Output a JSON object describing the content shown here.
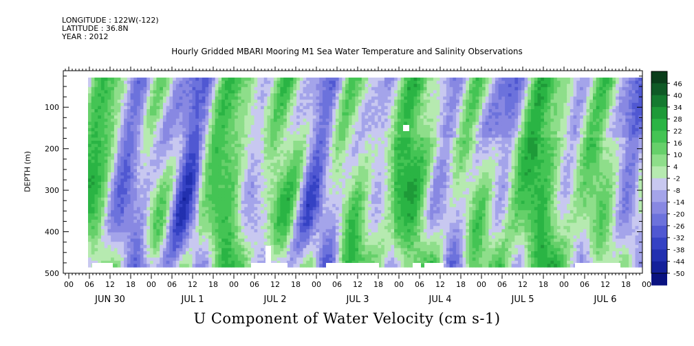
{
  "header": {
    "longitude": "LONGITUDE : 122W(-122)",
    "latitude": "LATITUDE : 36.8N",
    "year": "YEAR : 2012",
    "title": "Hourly Gridded MBARI Mooring M1 Sea Water Temperature and Salinity Observations"
  },
  "chart_data": {
    "type": "heatmap",
    "title": "Hourly Gridded MBARI Mooring M1 Sea Water Temperature and Salinity Observations",
    "xlabel": "U Component of Water Velocity (cm s-1)",
    "ylabel": "DEPTH (m)",
    "x_hour_ticks": [
      "00",
      "06",
      "12",
      "18",
      "00",
      "06",
      "12",
      "18",
      "00",
      "06",
      "12",
      "18",
      "00",
      "06",
      "12",
      "18",
      "00",
      "06",
      "12",
      "18",
      "00",
      "06",
      "12",
      "18",
      "00",
      "06",
      "12",
      "18",
      "00"
    ],
    "day_labels": [
      "JUN 30",
      "JUL  1",
      "JUL  2",
      "JUL  3",
      "JUL  4",
      "JUL  5",
      "JUL  6"
    ],
    "y_ticks": [
      100,
      200,
      300,
      400,
      500
    ],
    "ylim": [
      500,
      12
    ],
    "colorbar": {
      "levels": [
        48,
        46,
        40,
        34,
        28,
        22,
        16,
        10,
        4,
        -2,
        -8,
        -14,
        -20,
        -26,
        -32,
        -38,
        -44,
        -50
      ],
      "labels": [
        "46",
        "40",
        "34",
        "28",
        "22",
        "16",
        "10",
        "4",
        "-2",
        "-8",
        "-14",
        "-20",
        "-26",
        "-32",
        "-38",
        "-44",
        "-50"
      ],
      "colors": [
        "#0a3d1a",
        "#0f5a26",
        "#157a30",
        "#1e9a38",
        "#2ab444",
        "#44c454",
        "#66d06a",
        "#8ede8a",
        "#b6eab0",
        "#c8c8f0",
        "#a4a4ea",
        "#8888e2",
        "#6c72dc",
        "#5058d2",
        "#3542c4",
        "#2230b0",
        "#14209a",
        "#0a1280"
      ]
    },
    "blank_areas_note": ""
  }
}
